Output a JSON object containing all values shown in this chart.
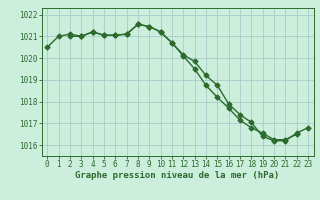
{
  "x_all": [
    0,
    1,
    2,
    3,
    4,
    5,
    6,
    7,
    8,
    9,
    10,
    11,
    12,
    13,
    14,
    15,
    16,
    17,
    18,
    19,
    20,
    21,
    22,
    23
  ],
  "line1_y": [
    1020.5,
    1021.0,
    1021.1,
    1021.0,
    1021.2,
    1021.05,
    1021.05,
    1021.1,
    1021.55,
    1021.45,
    1021.2,
    1020.7,
    1020.1,
    1019.5,
    1018.75,
    1018.2,
    1017.7,
    1017.15,
    1016.8,
    1016.55,
    1016.25,
    1016.25,
    1016.5,
    null
  ],
  "line2_y": [
    null,
    null,
    1021.0,
    1021.0,
    1021.2,
    1021.05,
    1021.05,
    1021.1,
    1021.55,
    1021.45,
    1021.2,
    1020.7,
    1020.15,
    1019.85,
    1019.2,
    1018.75,
    1017.9,
    1017.4,
    1017.05,
    1016.4,
    1016.2,
    1016.2,
    1016.55,
    1016.8
  ],
  "ylim": [
    1015.5,
    1022.3
  ],
  "yticks": [
    1016,
    1017,
    1018,
    1019,
    1020,
    1021,
    1022
  ],
  "xlim": [
    -0.5,
    23.5
  ],
  "xticks": [
    0,
    1,
    2,
    3,
    4,
    5,
    6,
    7,
    8,
    9,
    10,
    11,
    12,
    13,
    14,
    15,
    16,
    17,
    18,
    19,
    20,
    21,
    22,
    23
  ],
  "xlabel": "Graphe pression niveau de la mer (hPa)",
  "line_color": "#2d6a2d",
  "bg_color": "#cceedd",
  "grid_color": "#aacccc",
  "marker": "D",
  "marker_size": 2.5,
  "line_width": 1.0,
  "tick_fontsize": 5.5,
  "xlabel_fontsize": 6.5
}
